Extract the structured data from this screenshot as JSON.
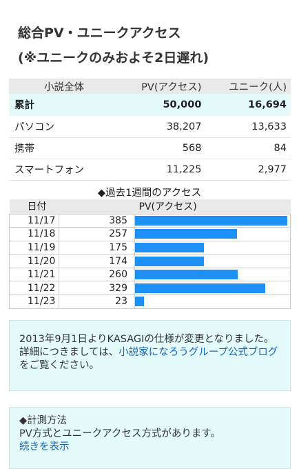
{
  "heading": {
    "line1": "総合PV・ユニークアクセス",
    "line2": "(※ユニークのみおよそ2日遅れ)"
  },
  "summary": {
    "headers": [
      "小説全体",
      "PV(アクセス)",
      "ユニーク(人)"
    ],
    "total": {
      "label": "累計",
      "pv": "50,000",
      "unique": "16,694"
    },
    "rows": [
      {
        "label": "パソコン",
        "pv": "38,207",
        "unique": "13,633"
      },
      {
        "label": "携帯",
        "pv": "568",
        "unique": "84"
      },
      {
        "label": "スマートフォン",
        "pv": "11,225",
        "unique": "2,977"
      }
    ]
  },
  "weekly": {
    "title": "◆過去1週間のアクセス",
    "headers": [
      "日付",
      "PV(アクセス)"
    ],
    "rows": [
      {
        "date": "11/17",
        "value": "385",
        "pv": 385
      },
      {
        "date": "11/18",
        "value": "257",
        "pv": 257
      },
      {
        "date": "11/19",
        "value": "175",
        "pv": 175
      },
      {
        "date": "11/20",
        "value": "174",
        "pv": 174
      },
      {
        "date": "11/21",
        "value": "260",
        "pv": 260
      },
      {
        "date": "11/22",
        "value": "329",
        "pv": 329
      },
      {
        "date": "11/23",
        "value": "23",
        "pv": 23
      }
    ],
    "max_pv": 385,
    "bar_color": "#1e8ff5"
  },
  "notice": {
    "text1": "2013年9月1日よりKASAGIの仕様が変更となりました。",
    "text2": "詳細につきましては、",
    "link": "小説家になろうグループ公式ブログ",
    "text3": "をご覧ください。"
  },
  "method": {
    "title": "◆計測方法",
    "text": "PV方式とユニークアクセス方式があります。",
    "link": "続きを表示"
  }
}
